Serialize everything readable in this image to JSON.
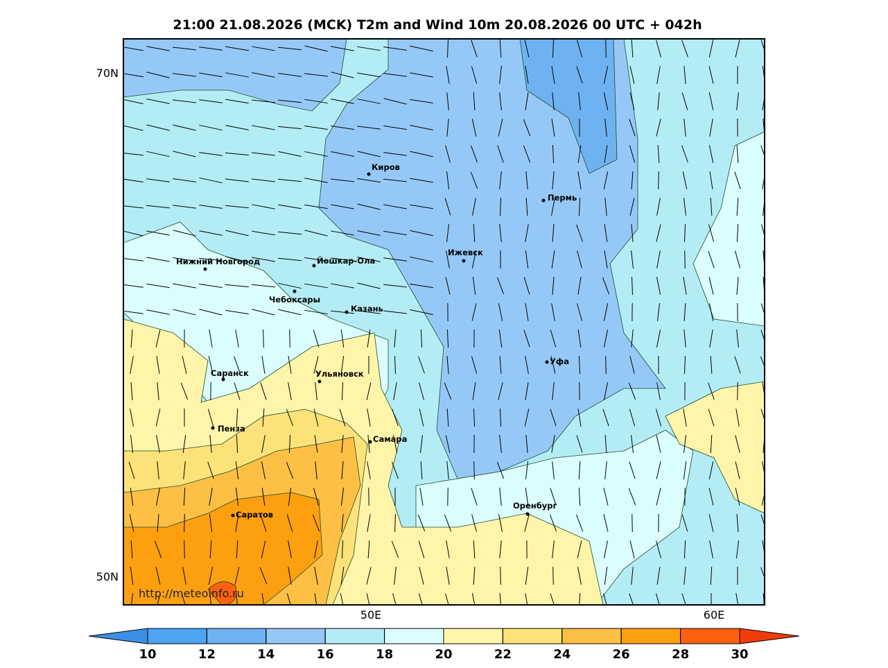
{
  "header": {
    "title": "21:00 21.08.2026 (MCK) T2m and Wind 10m 20.08.2026 00 UTC + 042h"
  },
  "map": {
    "lat_labels": [
      "70N",
      "50N"
    ],
    "lon_labels": [
      "50E",
      "60E"
    ],
    "watermark": "http://meteoinfo.ru",
    "cities": [
      "Киров",
      "Пермь",
      "Нижний Новгород",
      "Йошкар-Ола",
      "Ижевск",
      "Чебоксары",
      "Казань",
      "Уфа",
      "Саранск",
      "Ульяновск",
      "Пенза",
      "Самара",
      "Оренбург",
      "Саратов"
    ]
  },
  "colorbar": {
    "ticks": [
      10,
      12,
      14,
      16,
      18,
      20,
      22,
      24,
      26,
      28,
      30
    ],
    "colors": [
      "#3d8fe6",
      "#4ea3f2",
      "#6fb2f2",
      "#96c8f7",
      "#b4ecf6",
      "#dcfdfd",
      "#fff5aa",
      "#fde27a",
      "#fdc045",
      "#fda010",
      "#fe6010",
      "#f03c0a"
    ]
  }
}
